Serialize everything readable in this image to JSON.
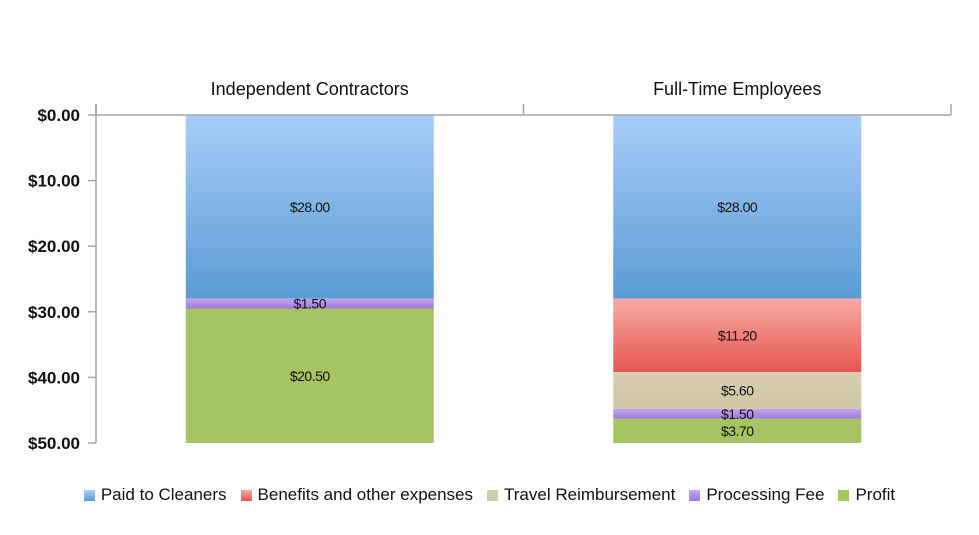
{
  "chart_data": {
    "type": "bar",
    "stacked": true,
    "orientation": "vertical",
    "y_axis_reversed": true,
    "categories": [
      "Independent Contractors",
      "Full-Time Employees"
    ],
    "category_axis_position": "top",
    "ylim": [
      0,
      50
    ],
    "yticks": [
      0,
      10,
      20,
      30,
      40,
      50
    ],
    "ytick_labels": [
      "$0.00",
      "$10.00",
      "$20.00",
      "$30.00",
      "$40.00",
      "$50.00"
    ],
    "series": [
      {
        "name": "Paid to Cleaners",
        "color": "#5b9bd5",
        "color_light": "#a9cdf8",
        "values": [
          28.0,
          28.0
        ],
        "labels": [
          "$28.00",
          "$28.00"
        ]
      },
      {
        "name": "Benefits and other expenses",
        "color": "#e5564f",
        "color_light": "#f8aaa5",
        "values": [
          0,
          11.2
        ],
        "labels": [
          "",
          "$11.20"
        ]
      },
      {
        "name": "Travel Reimbursement",
        "color": "#cfc6a4",
        "color_light": "#d7cfb0",
        "values": [
          0,
          5.6
        ],
        "labels": [
          "",
          "$5.60"
        ]
      },
      {
        "name": "Processing Fee",
        "color": "#9f79d9",
        "color_light": "#c2a8ef",
        "values": [
          1.5,
          1.5
        ],
        "labels": [
          "$1.50",
          "$1.50"
        ]
      },
      {
        "name": "Profit",
        "color": "#a6c463",
        "color_light": "#a6c463",
        "values": [
          20.5,
          3.7
        ],
        "labels": [
          "$20.50",
          "$3.70"
        ]
      }
    ],
    "legend_position": "bottom",
    "grid": false,
    "title": "",
    "xlabel": "",
    "ylabel": ""
  }
}
